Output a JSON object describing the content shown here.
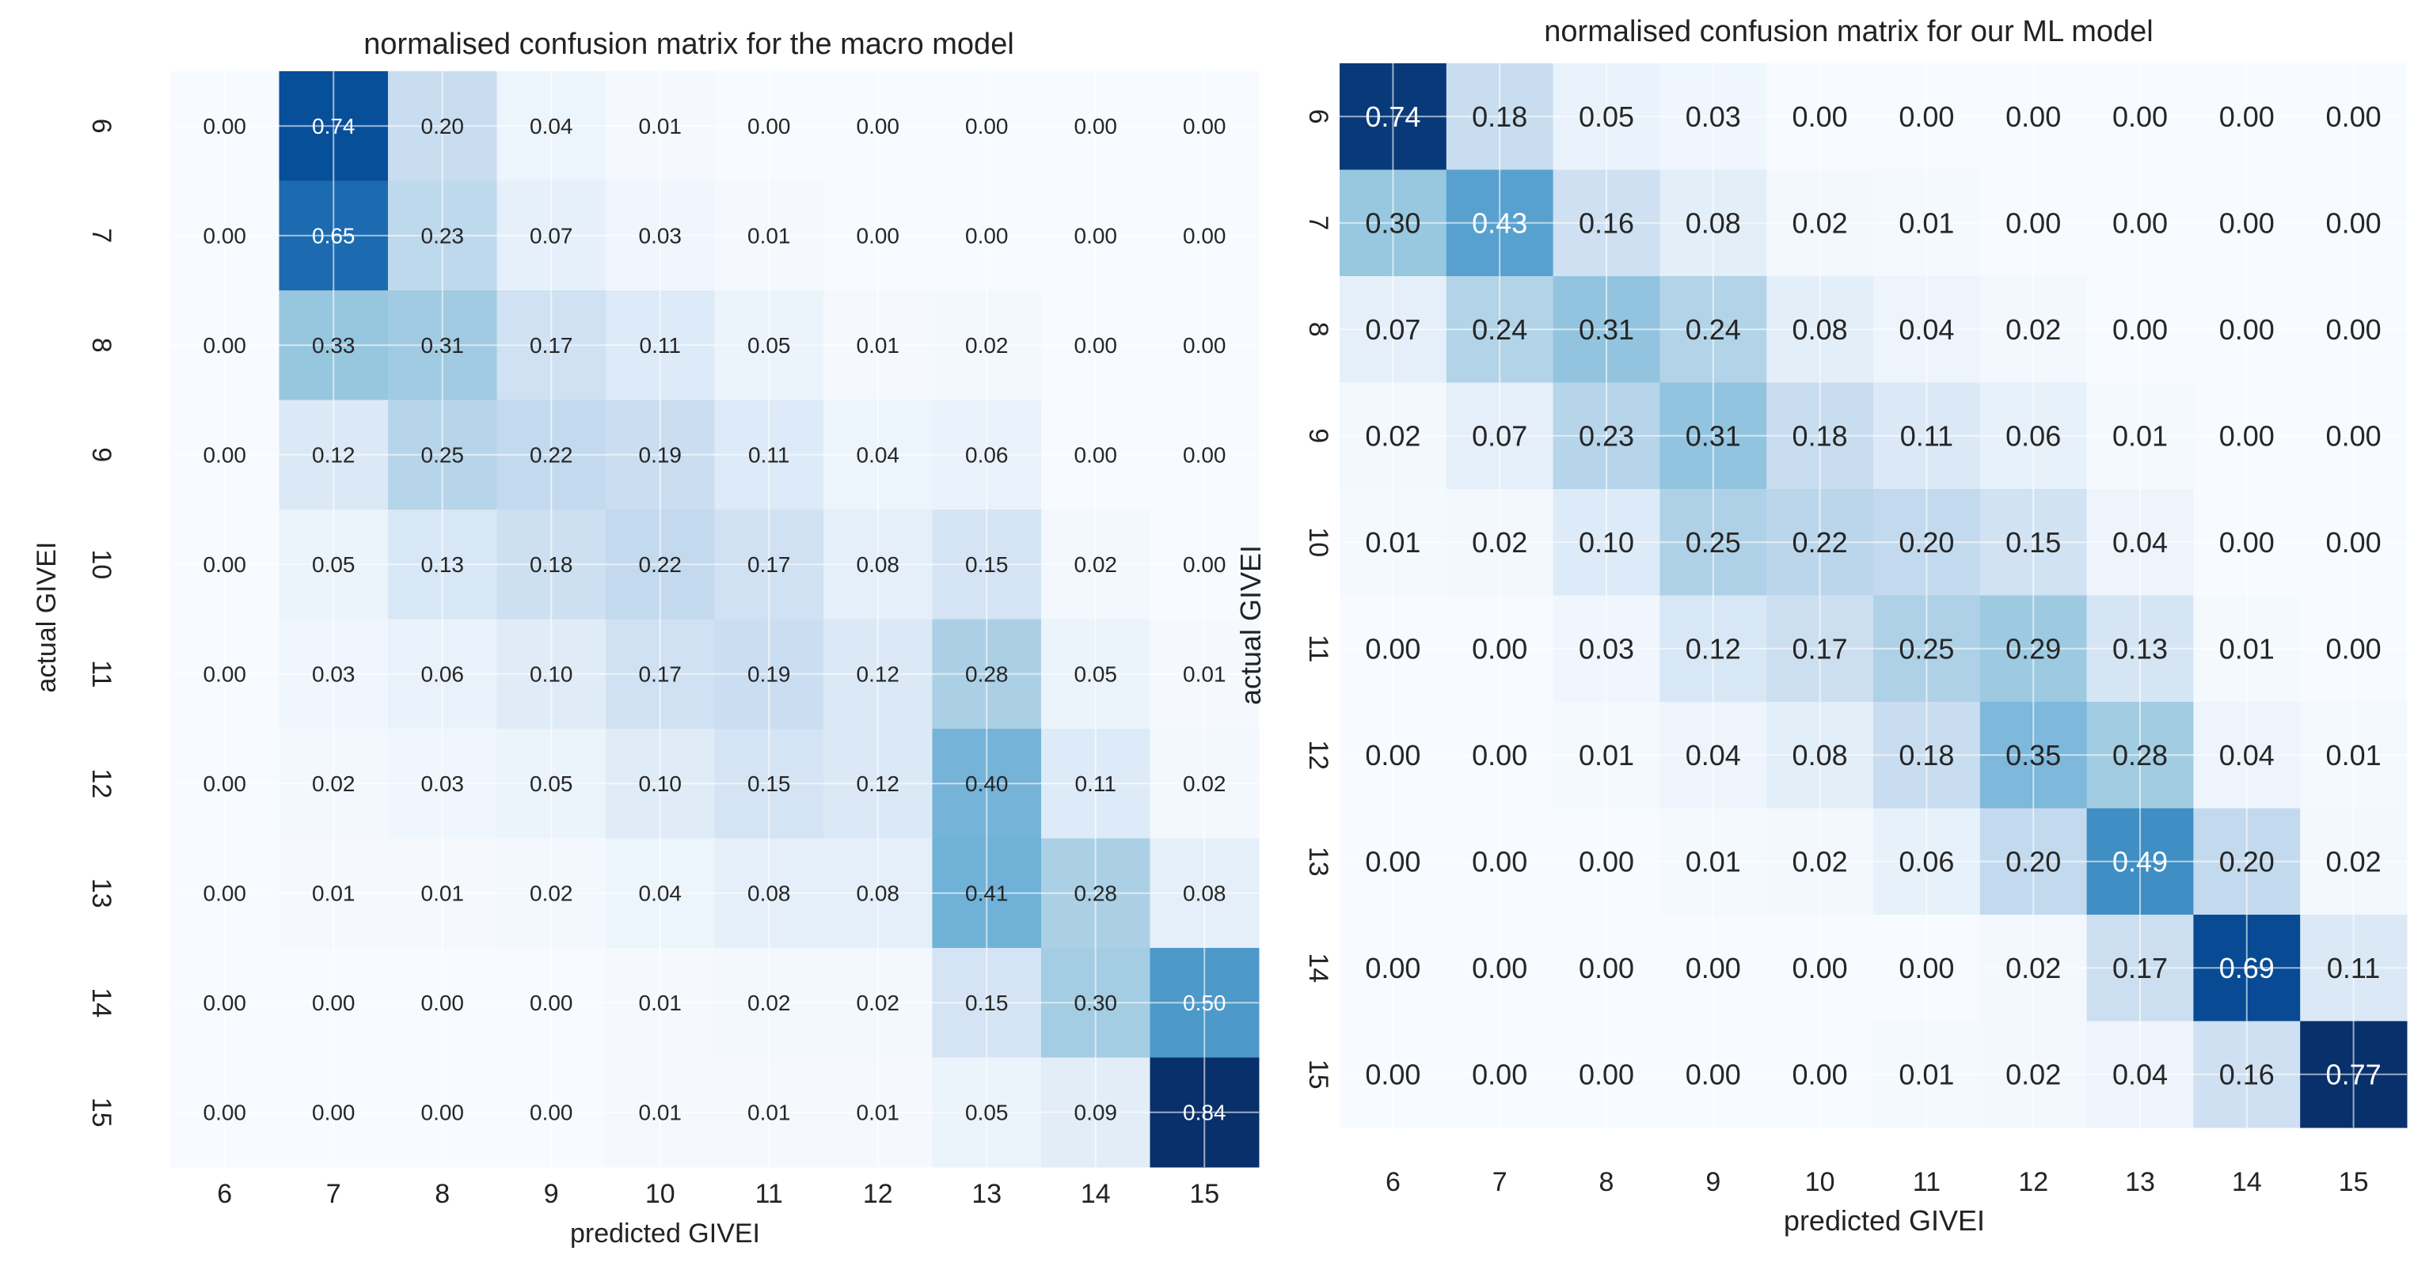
{
  "colors": {
    "background": "#ffffff",
    "cmap_low": "#f7fbff",
    "cmap_high": "#08306b",
    "text_dark": "#262626",
    "text_light": "#ffffff",
    "gridline": "#ffffff"
  },
  "chart_data": [
    {
      "type": "heatmap",
      "title": "normalised confusion matrix for the macro model",
      "xlabel": "predicted GIVEI",
      "ylabel": "actual GIVEI",
      "x_categories": [
        "6",
        "7",
        "8",
        "9",
        "10",
        "11",
        "12",
        "13",
        "14",
        "15"
      ],
      "y_categories": [
        "6",
        "7",
        "8",
        "9",
        "10",
        "11",
        "12",
        "13",
        "14",
        "15"
      ],
      "value_range": [
        0,
        0.84
      ],
      "values": [
        [
          0.0,
          0.74,
          0.2,
          0.04,
          0.01,
          0.0,
          0.0,
          0.0,
          0.0,
          0.0
        ],
        [
          0.0,
          0.65,
          0.23,
          0.07,
          0.03,
          0.01,
          0.0,
          0.0,
          0.0,
          0.0
        ],
        [
          0.0,
          0.33,
          0.31,
          0.17,
          0.11,
          0.05,
          0.01,
          0.02,
          0.0,
          0.0
        ],
        [
          0.0,
          0.12,
          0.25,
          0.22,
          0.19,
          0.11,
          0.04,
          0.06,
          0.0,
          0.0
        ],
        [
          0.0,
          0.05,
          0.13,
          0.18,
          0.22,
          0.17,
          0.08,
          0.15,
          0.02,
          0.0
        ],
        [
          0.0,
          0.03,
          0.06,
          0.1,
          0.17,
          0.19,
          0.12,
          0.28,
          0.05,
          0.01
        ],
        [
          0.0,
          0.02,
          0.03,
          0.05,
          0.1,
          0.15,
          0.12,
          0.4,
          0.11,
          0.02
        ],
        [
          0.0,
          0.01,
          0.01,
          0.02,
          0.04,
          0.08,
          0.08,
          0.41,
          0.28,
          0.08
        ],
        [
          0.0,
          0.0,
          0.0,
          0.0,
          0.01,
          0.02,
          0.02,
          0.15,
          0.3,
          0.5
        ],
        [
          0.0,
          0.0,
          0.0,
          0.0,
          0.01,
          0.01,
          0.01,
          0.05,
          0.09,
          0.84
        ]
      ]
    },
    {
      "type": "heatmap",
      "title": "normalised confusion matrix for our ML model",
      "xlabel": "predicted GIVEI",
      "ylabel": "actual GIVEI",
      "x_categories": [
        "6",
        "7",
        "8",
        "9",
        "10",
        "11",
        "12",
        "13",
        "14",
        "15"
      ],
      "y_categories": [
        "6",
        "7",
        "8",
        "9",
        "10",
        "11",
        "12",
        "13",
        "14",
        "15"
      ],
      "value_range": [
        0,
        0.77
      ],
      "values": [
        [
          0.74,
          0.18,
          0.05,
          0.03,
          0.0,
          0.0,
          0.0,
          0.0,
          0.0,
          0.0
        ],
        [
          0.3,
          0.43,
          0.16,
          0.08,
          0.02,
          0.01,
          0.0,
          0.0,
          0.0,
          0.0
        ],
        [
          0.07,
          0.24,
          0.31,
          0.24,
          0.08,
          0.04,
          0.02,
          0.0,
          0.0,
          0.0
        ],
        [
          0.02,
          0.07,
          0.23,
          0.31,
          0.18,
          0.11,
          0.06,
          0.01,
          0.0,
          0.0
        ],
        [
          0.01,
          0.02,
          0.1,
          0.25,
          0.22,
          0.2,
          0.15,
          0.04,
          0.0,
          0.0
        ],
        [
          0.0,
          0.0,
          0.03,
          0.12,
          0.17,
          0.25,
          0.29,
          0.13,
          0.01,
          0.0
        ],
        [
          0.0,
          0.0,
          0.01,
          0.04,
          0.08,
          0.18,
          0.35,
          0.28,
          0.04,
          0.01
        ],
        [
          0.0,
          0.0,
          0.0,
          0.01,
          0.02,
          0.06,
          0.2,
          0.49,
          0.2,
          0.02
        ],
        [
          0.0,
          0.0,
          0.0,
          0.0,
          0.0,
          0.0,
          0.02,
          0.17,
          0.69,
          0.11
        ],
        [
          0.0,
          0.0,
          0.0,
          0.0,
          0.0,
          0.01,
          0.02,
          0.04,
          0.16,
          0.77
        ]
      ]
    }
  ]
}
